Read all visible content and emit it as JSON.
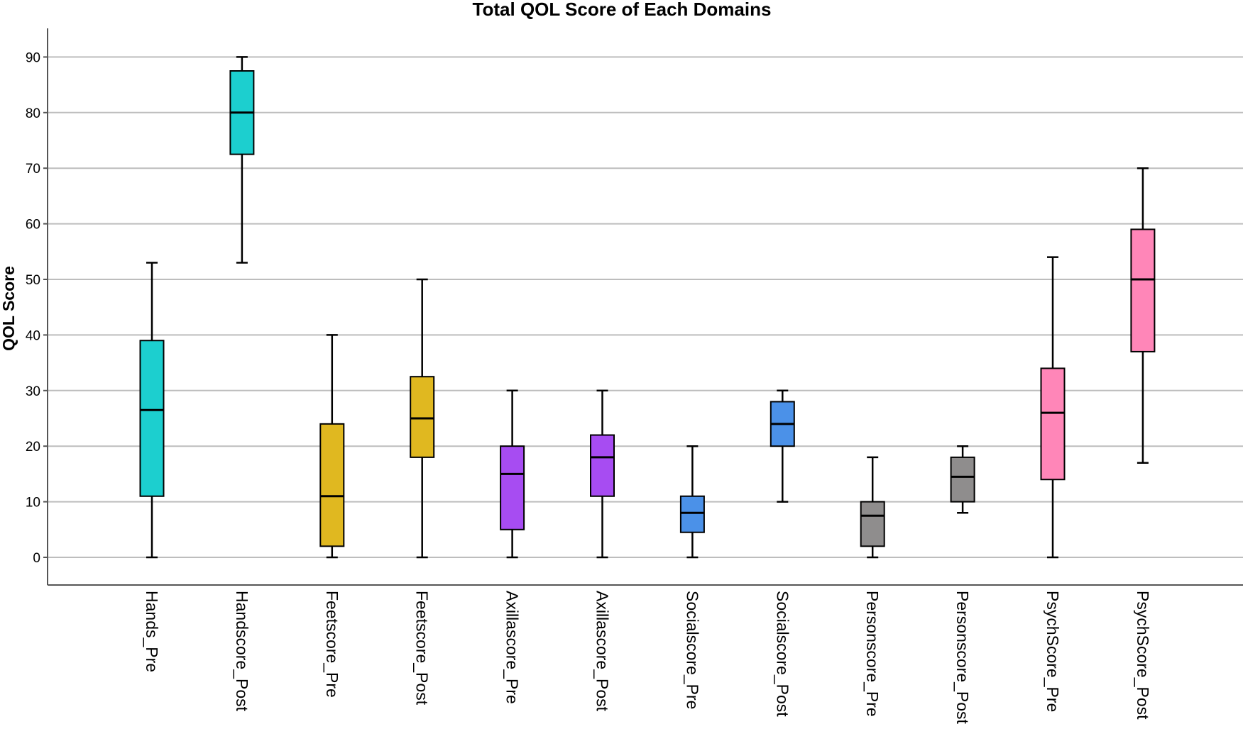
{
  "chart_data": {
    "type": "boxplot",
    "title": "Total QOL Score of Each Domains",
    "ylabel": "QOL Score",
    "xlabel": "",
    "ylim": [
      -5,
      95
    ],
    "yticks": [
      0,
      10,
      20,
      30,
      40,
      50,
      60,
      70,
      80,
      90
    ],
    "grid": true,
    "categories": [
      "Hands_Pre",
      "Handscore_Post",
      "Feetscore_Pre",
      "Feetscore_Post",
      "Axillascore_Pre",
      "Axillascore_Post",
      "Socialscore_Pre",
      "Socialscore_Post",
      "Personscore_Pre",
      "Personscore_Post",
      "PsychScore_Pre",
      "PsychScore_Post"
    ],
    "boxes": [
      {
        "category": "Hands_Pre",
        "min": 0,
        "q1": 11,
        "median": 26.5,
        "q3": 39,
        "max": 53,
        "color": "#1ccfcf"
      },
      {
        "category": "Handscore_Post",
        "min": 53,
        "q1": 72.5,
        "median": 80,
        "q3": 87.5,
        "max": 90,
        "color": "#1ccfcf"
      },
      {
        "category": "Feetscore_Pre",
        "min": 0,
        "q1": 2,
        "median": 11,
        "q3": 24,
        "max": 40,
        "color": "#e0b820"
      },
      {
        "category": "Feetscore_Post",
        "min": 0,
        "q1": 18,
        "median": 25,
        "q3": 32.5,
        "max": 50,
        "color": "#e0b820"
      },
      {
        "category": "Axillascore_Pre",
        "min": 0,
        "q1": 5,
        "median": 15,
        "q3": 20,
        "max": 30,
        "color": "#a74cf2"
      },
      {
        "category": "Axillascore_Post",
        "min": 0,
        "q1": 11,
        "median": 18,
        "q3": 22,
        "max": 30,
        "color": "#a74cf2"
      },
      {
        "category": "Socialscore_Pre",
        "min": 0,
        "q1": 4.5,
        "median": 8,
        "q3": 11,
        "max": 20,
        "color": "#4b91e8"
      },
      {
        "category": "Socialscore_Post",
        "min": 10,
        "q1": 20,
        "median": 24,
        "q3": 28,
        "max": 30,
        "color": "#4b91e8"
      },
      {
        "category": "Personscore_Pre",
        "min": 0,
        "q1": 2,
        "median": 7.5,
        "q3": 10,
        "max": 18,
        "color": "#8f8d8d"
      },
      {
        "category": "Personscore_Post",
        "min": 8,
        "q1": 10,
        "median": 14.5,
        "q3": 18,
        "max": 20,
        "color": "#8f8d8d"
      },
      {
        "category": "PsychScore_Pre",
        "min": 0,
        "q1": 14,
        "median": 26,
        "q3": 34,
        "max": 54,
        "color": "#ff86b8"
      },
      {
        "category": "PsychScore_Post",
        "min": 17,
        "q1": 37,
        "median": 50,
        "q3": 59,
        "max": 70,
        "color": "#ff86b8"
      }
    ]
  }
}
